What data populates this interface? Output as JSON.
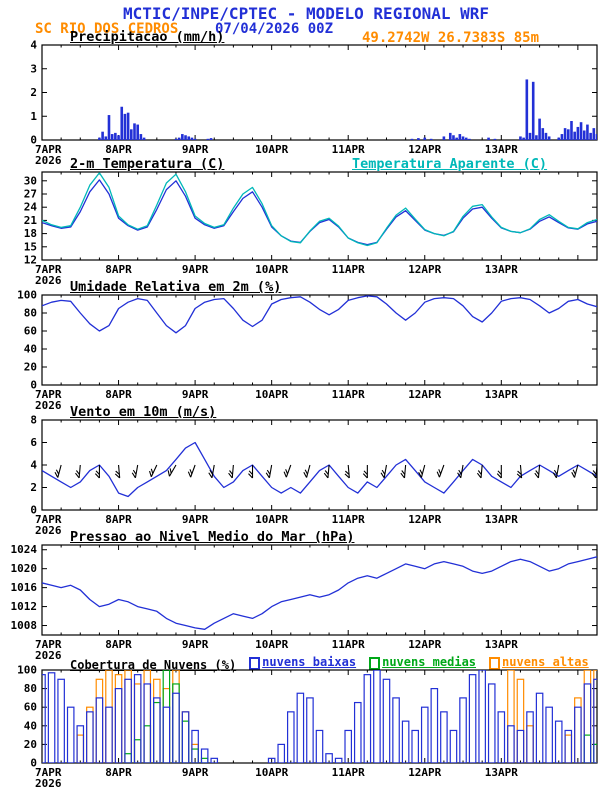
{
  "header": {
    "title": "MCTIC/INPE/CPTEC - MODELO REGIONAL WRF",
    "station": "SC RIO DOS CEDROS",
    "run": "07/04/2026 00Z",
    "location": "49.2742W 26.7383S 85m"
  },
  "colors": {
    "blue": "#2230d6",
    "cyan": "#00b8b8",
    "orange": "#ff8c00",
    "green": "#00a818",
    "black": "#000000"
  },
  "x_axis": {
    "hours_total": 174,
    "day_labels": [
      "7APR",
      "8APR",
      "9APR",
      "10APR",
      "11APR",
      "12APR",
      "13APR"
    ],
    "day_label_hours": [
      0,
      24,
      48,
      72,
      96,
      120,
      144
    ],
    "year_label": "2026"
  },
  "chart_data": [
    {
      "id": "precip",
      "type": "bar",
      "title": "Precipitacao (mm/h)",
      "ylim": [
        0,
        4
      ],
      "yticks": [
        0,
        1,
        2,
        3,
        4
      ],
      "series": [
        {
          "name": "precipitacao mm/h",
          "color": "blue",
          "points": [
            [
              18,
              0.1
            ],
            [
              19,
              0.35
            ],
            [
              20,
              0.15
            ],
            [
              21,
              1.05
            ],
            [
              22,
              0.25
            ],
            [
              23,
              0.3
            ],
            [
              24,
              0.2
            ],
            [
              25,
              1.4
            ],
            [
              26,
              1.1
            ],
            [
              27,
              1.15
            ],
            [
              28,
              0.45
            ],
            [
              29,
              0.7
            ],
            [
              30,
              0.65
            ],
            [
              31,
              0.25
            ],
            [
              32,
              0.1
            ],
            [
              42,
              0.05
            ],
            [
              43,
              0.1
            ],
            [
              44,
              0.25
            ],
            [
              45,
              0.2
            ],
            [
              46,
              0.15
            ],
            [
              47,
              0.1
            ],
            [
              48,
              0.05
            ],
            [
              52,
              0.05
            ],
            [
              53,
              0.08
            ],
            [
              116,
              0.05
            ],
            [
              118,
              0.08
            ],
            [
              120,
              0.1
            ],
            [
              122,
              0.05
            ],
            [
              126,
              0.15
            ],
            [
              128,
              0.3
            ],
            [
              129,
              0.2
            ],
            [
              130,
              0.1
            ],
            [
              131,
              0.25
            ],
            [
              132,
              0.15
            ],
            [
              133,
              0.1
            ],
            [
              134,
              0.05
            ],
            [
              140,
              0.1
            ],
            [
              142,
              0.05
            ],
            [
              150,
              0.15
            ],
            [
              151,
              0.1
            ],
            [
              152,
              2.55
            ],
            [
              153,
              0.3
            ],
            [
              154,
              2.45
            ],
            [
              155,
              0.2
            ],
            [
              156,
              0.9
            ],
            [
              157,
              0.5
            ],
            [
              158,
              0.3
            ],
            [
              159,
              0.15
            ],
            [
              162,
              0.1
            ],
            [
              163,
              0.25
            ],
            [
              164,
              0.5
            ],
            [
              165,
              0.45
            ],
            [
              166,
              0.8
            ],
            [
              167,
              0.35
            ],
            [
              168,
              0.55
            ],
            [
              169,
              0.75
            ],
            [
              170,
              0.4
            ],
            [
              171,
              0.65
            ],
            [
              172,
              0.3
            ],
            [
              173,
              0.5
            ],
            [
              174,
              0.25
            ]
          ]
        }
      ]
    },
    {
      "id": "temp",
      "type": "line",
      "title": "2-m Temperatura (C)",
      "legend": "Temperatura Aparente (C)",
      "ylim": [
        12,
        32
      ],
      "yticks": [
        12,
        15,
        18,
        21,
        24,
        27,
        30
      ],
      "x_step": 3,
      "series": [
        {
          "name": "2-m Temperatura (C)",
          "color": "blue",
          "values": [
            20.5,
            19.8,
            19.2,
            19.5,
            23.0,
            27.5,
            30.2,
            27.0,
            21.5,
            19.8,
            18.8,
            19.5,
            23.5,
            28.0,
            30.0,
            26.5,
            21.5,
            20.0,
            19.2,
            19.8,
            23.0,
            26.0,
            27.5,
            24.0,
            19.5,
            17.5,
            16.3,
            16.0,
            18.5,
            20.5,
            21.2,
            19.5,
            17.0,
            16.0,
            15.5,
            16.0,
            19.0,
            21.8,
            23.2,
            21.0,
            18.8,
            18.0,
            17.6,
            18.4,
            21.5,
            23.6,
            24.0,
            21.5,
            19.3,
            18.5,
            18.2,
            19.0,
            20.8,
            21.8,
            20.5,
            19.3,
            19.0,
            20.2,
            20.8
          ]
        },
        {
          "name": "Temperatura Aparente (C)",
          "color": "cyan",
          "values": [
            21.0,
            20.0,
            19.4,
            19.8,
            24.0,
            29.0,
            31.8,
            28.5,
            22.0,
            20.0,
            19.0,
            19.8,
            24.5,
            29.5,
            31.5,
            27.5,
            22.0,
            20.3,
            19.4,
            20.0,
            23.8,
            27.0,
            28.5,
            24.8,
            19.8,
            17.5,
            16.2,
            15.9,
            18.6,
            20.8,
            21.5,
            19.7,
            17.0,
            15.9,
            15.3,
            15.9,
            19.2,
            22.2,
            23.8,
            21.3,
            18.9,
            18.0,
            17.5,
            18.5,
            21.9,
            24.2,
            24.6,
            21.8,
            19.4,
            18.5,
            18.2,
            19.1,
            21.2,
            22.3,
            20.8,
            19.4,
            19.1,
            20.5,
            21.2
          ]
        }
      ]
    },
    {
      "id": "rh",
      "type": "line",
      "title": "Umidade Relativa em 2m (%)",
      "ylim": [
        0,
        100
      ],
      "yticks": [
        0,
        20,
        40,
        60,
        80,
        100
      ],
      "x_step": 3,
      "series": [
        {
          "name": "umidade relativa %",
          "color": "blue",
          "values": [
            88,
            92,
            94,
            93,
            80,
            68,
            60,
            66,
            85,
            92,
            96,
            94,
            80,
            66,
            58,
            66,
            85,
            92,
            95,
            96,
            85,
            72,
            65,
            72,
            90,
            95,
            97,
            98,
            92,
            84,
            78,
            84,
            94,
            97,
            99,
            98,
            90,
            80,
            72,
            80,
            92,
            96,
            97,
            96,
            88,
            76,
            70,
            80,
            93,
            96,
            97,
            95,
            88,
            80,
            85,
            93,
            95,
            90,
            87
          ]
        }
      ]
    },
    {
      "id": "wind",
      "type": "wind",
      "title": "Vento em 10m (m/s)",
      "ylim": [
        0,
        8
      ],
      "yticks": [
        0,
        2,
        4,
        6,
        8
      ],
      "x_step": 3,
      "series": [
        {
          "name": "velocidade do vento m/s",
          "color": "blue",
          "values": [
            3.5,
            3.0,
            2.5,
            2.0,
            2.5,
            3.5,
            4.0,
            3.0,
            1.5,
            1.2,
            2.0,
            2.5,
            3.0,
            3.5,
            4.5,
            5.5,
            6.0,
            4.5,
            3.0,
            2.0,
            2.5,
            3.5,
            4.0,
            3.0,
            2.0,
            1.5,
            2.0,
            1.5,
            2.5,
            3.5,
            4.0,
            3.0,
            2.0,
            1.5,
            2.5,
            2.0,
            3.0,
            4.0,
            4.5,
            3.5,
            2.5,
            2.0,
            1.5,
            2.5,
            3.5,
            4.5,
            4.0,
            3.0,
            2.5,
            2.0,
            3.0,
            3.5,
            4.0,
            3.5,
            3.0,
            3.5,
            4.0,
            3.5,
            3.0
          ]
        }
      ],
      "barbs": {
        "level": 4,
        "interval_hours": 6,
        "angles_deg": [
          100,
          105,
          95,
          90,
          85,
          100,
          115,
          120,
          110,
          100,
          95,
          90,
          100,
          110,
          105,
          95,
          85,
          90,
          100,
          95,
          105,
          110,
          100,
          95,
          90,
          85,
          95,
          100,
          105,
          95
        ]
      }
    },
    {
      "id": "slp",
      "type": "line",
      "title": "Pressao ao Nivel Medio do Mar (hPa)",
      "ylim": [
        1006,
        1025
      ],
      "yticks": [
        1008,
        1012,
        1016,
        1020,
        1024
      ],
      "x_step": 3,
      "series": [
        {
          "name": "pressao ao nivel medio do mar hPa",
          "color": "blue",
          "values": [
            1017.0,
            1016.5,
            1016.0,
            1016.5,
            1015.5,
            1013.5,
            1012.0,
            1012.5,
            1013.5,
            1013.0,
            1012.0,
            1011.5,
            1011.0,
            1009.5,
            1008.5,
            1008.0,
            1007.5,
            1007.2,
            1008.5,
            1009.5,
            1010.5,
            1010.0,
            1009.5,
            1010.5,
            1012.0,
            1013.0,
            1013.5,
            1014.0,
            1014.5,
            1014.0,
            1014.5,
            1015.5,
            1017.0,
            1018.0,
            1018.5,
            1018.0,
            1019.0,
            1020.0,
            1021.0,
            1020.5,
            1020.0,
            1021.0,
            1021.5,
            1021.0,
            1020.5,
            1019.5,
            1019.0,
            1019.5,
            1020.5,
            1021.5,
            1022.0,
            1021.5,
            1020.5,
            1019.5,
            1020.0,
            1021.0,
            1021.5,
            1022.0,
            1022.5
          ]
        }
      ]
    },
    {
      "id": "clouds",
      "type": "cloud",
      "title": "Cobertura de Nuvens (%)",
      "ylim": [
        0,
        100
      ],
      "yticks": [
        0,
        20,
        40,
        60,
        80,
        100
      ],
      "x_step": 3,
      "legend_items": [
        {
          "label": "nuvens baixas",
          "color": "blue"
        },
        {
          "label": "nuvens medias",
          "color": "green"
        },
        {
          "label": "nuvens altas",
          "color": "orange"
        }
      ],
      "series": [
        {
          "name": "nuvens altas",
          "color": "orange",
          "values": [
            0,
            0,
            0,
            0,
            30,
            60,
            90,
            100,
            95,
            100,
            85,
            100,
            90,
            80,
            100,
            55,
            20,
            0,
            0,
            0,
            0,
            0,
            0,
            0,
            0,
            0,
            0,
            0,
            0,
            0,
            0,
            0,
            0,
            0,
            0,
            0,
            0,
            0,
            0,
            0,
            0,
            0,
            0,
            0,
            0,
            0,
            0,
            0,
            0,
            100,
            90,
            40,
            0,
            0,
            0,
            30,
            70,
            100,
            100
          ]
        },
        {
          "name": "nuvens medias",
          "color": "green",
          "values": [
            0,
            0,
            0,
            0,
            0,
            0,
            0,
            0,
            0,
            10,
            25,
            40,
            65,
            100,
            85,
            45,
            15,
            5,
            0,
            0,
            0,
            0,
            0,
            0,
            0,
            0,
            0,
            0,
            0,
            0,
            0,
            0,
            0,
            0,
            0,
            0,
            0,
            0,
            0,
            0,
            0,
            0,
            0,
            0,
            0,
            0,
            0,
            0,
            0,
            0,
            0,
            0,
            0,
            0,
            0,
            0,
            0,
            30,
            20
          ]
        },
        {
          "name": "nuvens baixas",
          "color": "blue",
          "values": [
            95,
            97,
            90,
            60,
            40,
            55,
            70,
            60,
            80,
            90,
            95,
            85,
            70,
            60,
            75,
            55,
            35,
            15,
            5,
            0,
            0,
            0,
            0,
            0,
            5,
            20,
            55,
            75,
            70,
            35,
            10,
            5,
            35,
            65,
            95,
            100,
            90,
            70,
            45,
            35,
            60,
            80,
            55,
            35,
            70,
            95,
            100,
            85,
            55,
            40,
            35,
            55,
            75,
            60,
            45,
            35,
            60,
            85,
            90
          ]
        }
      ]
    }
  ]
}
